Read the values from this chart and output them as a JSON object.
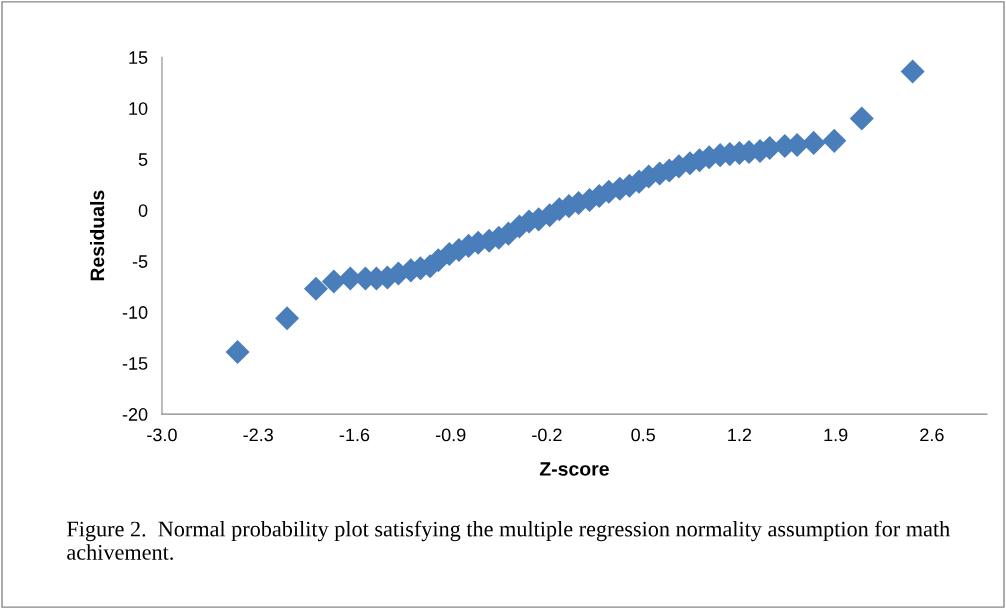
{
  "chart_data": {
    "type": "scatter",
    "xlabel": "Z-score",
    "ylabel": "Residuals",
    "annotations": [
      "Figure 2.  Normal probability plot satisfying the multiple regression normality assumption for math achivement."
    ],
    "x": [
      -2.45,
      -2.09,
      -1.88,
      -1.75,
      -1.63,
      -1.52,
      -1.44,
      -1.36,
      -1.28,
      -1.19,
      -1.12,
      -1.05,
      -0.99,
      -0.91,
      -0.84,
      -0.77,
      -0.7,
      -0.62,
      -0.55,
      -0.48,
      -0.4,
      -0.33,
      -0.26,
      -0.18,
      -0.11,
      -0.04,
      0.03,
      0.11,
      0.18,
      0.25,
      0.33,
      0.4,
      0.47,
      0.54,
      0.62,
      0.69,
      0.76,
      0.84,
      0.91,
      0.98,
      1.06,
      1.13,
      1.2,
      1.27,
      1.35,
      1.42,
      1.53,
      1.62,
      1.74,
      1.89,
      2.09,
      2.46
    ],
    "series": [
      {
        "color": "#4a7ebb",
        "values": [
          -13.9,
          -10.6,
          -7.7,
          -7.0,
          -6.7,
          -6.7,
          -6.7,
          -6.6,
          -6.2,
          -5.9,
          -5.7,
          -5.5,
          -4.9,
          -4.3,
          -3.9,
          -3.5,
          -3.2,
          -3.0,
          -2.7,
          -2.3,
          -1.6,
          -1.1,
          -0.9,
          -0.5,
          0.1,
          0.4,
          0.7,
          1.0,
          1.4,
          1.8,
          2.1,
          2.4,
          2.8,
          3.3,
          3.6,
          3.9,
          4.3,
          4.6,
          4.9,
          5.2,
          5.4,
          5.5,
          5.6,
          5.7,
          5.8,
          6.1,
          6.3,
          6.4,
          6.6,
          6.8,
          9.0,
          13.6
        ]
      }
    ],
    "xlim": [
      -3.0,
      3.0
    ],
    "xticks": [
      {
        "value": -3.0,
        "label": "-3.0"
      },
      -2.3,
      -1.6,
      -0.9,
      -0.2,
      0.5,
      1.2,
      1.9,
      2.6
    ],
    "ylim": [
      -20,
      15
    ],
    "yticks": [
      -20,
      -15,
      -10,
      -5,
      0,
      5,
      10,
      15
    ],
    "marker": "diamond",
    "grid": false
  }
}
